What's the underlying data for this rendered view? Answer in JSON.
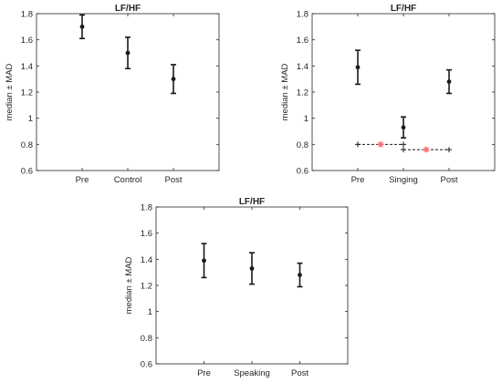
{
  "chart_data": [
    {
      "type": "errorbar",
      "title": "LF/HF",
      "ylabel": "median ± MAD",
      "ylim": [
        0.6,
        1.8
      ],
      "yticks": [
        "0.6",
        "0.8",
        "1",
        "1.2",
        "1.4",
        "1.6",
        "1.8"
      ],
      "categories": [
        "Pre",
        "Control",
        "Post"
      ],
      "median": [
        1.7,
        1.5,
        1.3
      ],
      "mad": [
        0.09,
        0.12,
        0.11
      ],
      "reference_lines": []
    },
    {
      "type": "errorbar",
      "title": "LF/HF",
      "ylabel": "median ± MAD",
      "ylim": [
        0.6,
        1.8
      ],
      "yticks": [
        "0.6",
        "0.8",
        "1",
        "1.2",
        "1.4",
        "1.6",
        "1.8"
      ],
      "categories": [
        "Pre",
        "Singing",
        "Post"
      ],
      "median": [
        1.39,
        0.93,
        1.28
      ],
      "mad": [
        0.13,
        0.08,
        0.09
      ],
      "reference_lines": [
        {
          "from": 0,
          "to": 1,
          "y": 0.8,
          "star_color": "#ff6b6b"
        },
        {
          "from": 1,
          "to": 2,
          "y": 0.76,
          "star_color": "#ff6b6b"
        }
      ]
    },
    {
      "type": "errorbar",
      "title": "LF/HF",
      "ylabel": "median ± MAD",
      "ylim": [
        0.6,
        1.8
      ],
      "yticks": [
        "0.6",
        "0.8",
        "1",
        "1.2",
        "1.4",
        "1.6",
        "1.8"
      ],
      "categories": [
        "Pre",
        "Speaking",
        "Post"
      ],
      "median": [
        1.39,
        1.33,
        1.28
      ],
      "mad": [
        0.13,
        0.12,
        0.09
      ],
      "reference_lines": []
    }
  ],
  "colors": {
    "axis": "#262626",
    "data": "#1a1a1a",
    "star": "#ff6b6b"
  }
}
